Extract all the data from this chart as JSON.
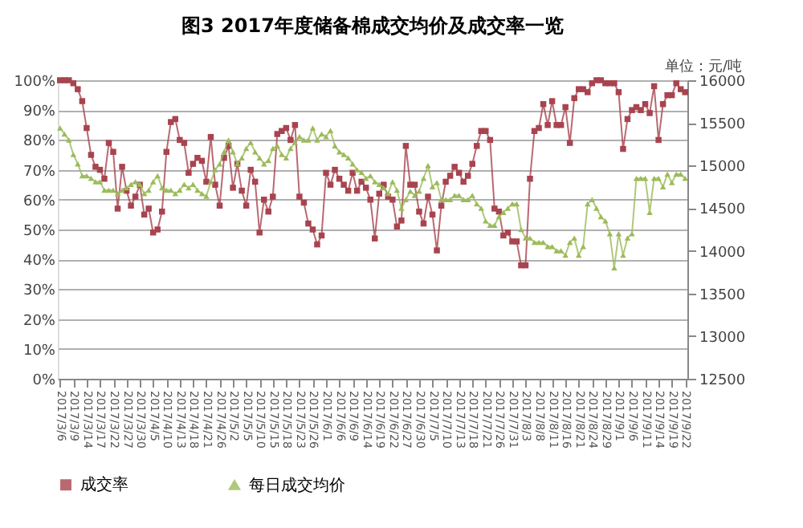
{
  "chart_data": {
    "type": "line",
    "title": "图3   2017年度储备棉成交均价及成交率一览",
    "annotations": [
      "单位：元/吨"
    ],
    "categories": [
      "2017/3/6",
      null,
      null,
      "2017/3/9",
      null,
      null,
      "2017/3/14",
      null,
      null,
      "2017/3/17",
      null,
      null,
      "2017/3/22",
      null,
      null,
      "2017/3/27",
      null,
      null,
      "2017/3/30",
      null,
      null,
      "2017/4/5",
      null,
      null,
      "2017/4/10",
      null,
      null,
      "2017/4/13",
      null,
      null,
      "2017/4/18",
      null,
      null,
      "2017/4/21",
      null,
      null,
      "2017/4/26",
      null,
      null,
      "2017/5/2",
      null,
      null,
      "2017/5/5",
      null,
      null,
      "2017/5/10",
      null,
      null,
      "2017/5/15",
      null,
      null,
      "2017/5/18",
      null,
      null,
      "2017/5/23",
      null,
      null,
      "2017/5/26",
      null,
      null,
      "2017/6/1",
      null,
      null,
      "2017/6/6",
      null,
      null,
      "2017/6/9",
      null,
      null,
      "2017/6/14",
      null,
      null,
      "2017/6/19",
      null,
      null,
      "2017/6/22",
      null,
      null,
      "2017/6/27",
      null,
      null,
      "2017/6/30",
      null,
      null,
      "2017/7/5",
      null,
      null,
      "2017/7/10",
      null,
      null,
      "2017/7/13",
      null,
      null,
      "2017/7/18",
      null,
      null,
      "2017/7/21",
      null,
      null,
      "2017/7/26",
      null,
      null,
      "2017/7/31",
      null,
      null,
      "2017/8/3",
      null,
      null,
      "2017/8/8",
      null,
      null,
      "2017/8/11",
      null,
      null,
      "2017/8/16",
      null,
      null,
      "2017/8/21",
      null,
      null,
      "2017/8/24",
      null,
      null,
      "2017/8/29",
      null,
      null,
      "2017/9/1",
      null,
      null,
      "2017/9/6",
      null,
      null,
      "2017/9/11",
      null,
      null,
      "2017/9/14",
      null,
      null,
      "2017/9/19",
      null,
      null,
      "2017/9/22"
    ],
    "series": [
      {
        "name": "成交率",
        "color": "#a8444f",
        "marker": "square",
        "values": [
          100,
          100,
          100,
          99,
          97,
          93,
          84,
          75,
          71,
          70,
          67,
          79,
          76,
          57,
          71,
          63,
          58,
          61,
          65,
          55,
          57,
          49,
          50,
          56,
          76,
          86,
          87,
          80,
          79,
          69,
          72,
          74,
          73,
          66,
          81,
          65,
          58,
          74,
          78,
          64,
          72,
          63,
          58,
          70,
          66,
          49,
          60,
          56,
          61,
          82,
          83,
          84,
          80,
          85,
          61,
          59,
          52,
          50,
          45,
          48,
          69,
          65,
          70,
          67,
          65,
          63,
          69,
          63,
          66,
          64,
          60,
          47,
          62,
          65,
          61,
          60,
          51,
          53,
          78,
          65,
          65,
          56,
          52,
          61,
          55,
          43,
          58,
          66,
          68,
          71,
          69,
          66,
          68,
          72,
          78,
          83,
          83,
          80,
          57,
          56,
          48,
          49,
          46,
          46,
          38,
          38,
          67,
          83,
          84,
          92,
          85,
          93,
          85,
          85,
          91,
          79,
          94,
          97,
          97,
          96,
          99,
          100,
          100,
          99,
          99,
          99,
          96,
          77,
          87,
          90,
          91,
          90,
          92,
          89,
          98,
          80,
          92,
          95,
          95,
          99,
          97,
          96
        ]
      },
      {
        "name": "每日成交均价",
        "color": "#9bbb59",
        "marker": "triangle",
        "axis": "y2",
        "values": [
          15440,
          15370,
          15300,
          15130,
          15020,
          14880,
          14880,
          14850,
          14810,
          14810,
          14710,
          14710,
          14710,
          14670,
          14710,
          14740,
          14780,
          14810,
          14780,
          14670,
          14710,
          14810,
          14880,
          14740,
          14710,
          14710,
          14670,
          14710,
          14780,
          14740,
          14780,
          14710,
          14670,
          14640,
          14810,
          14950,
          15020,
          15160,
          15300,
          15160,
          15020,
          15090,
          15200,
          15270,
          15160,
          15090,
          15020,
          15060,
          15200,
          15230,
          15130,
          15090,
          15200,
          15270,
          15340,
          15300,
          15300,
          15440,
          15300,
          15370,
          15340,
          15410,
          15230,
          15160,
          15130,
          15090,
          15020,
          14950,
          14920,
          14850,
          14880,
          14810,
          14780,
          14740,
          14670,
          14810,
          14710,
          14500,
          14600,
          14700,
          14650,
          14700,
          14850,
          15000,
          14750,
          14800,
          14600,
          14600,
          14600,
          14650,
          14650,
          14600,
          14600,
          14650,
          14550,
          14500,
          14350,
          14300,
          14300,
          14400,
          14450,
          14500,
          14550,
          14550,
          14250,
          14150,
          14150,
          14100,
          14100,
          14100,
          14050,
          14050,
          14000,
          14000,
          13950,
          14100,
          14150,
          13950,
          14050,
          14550,
          14600,
          14500,
          14400,
          14350,
          14200,
          13800,
          14200,
          13950,
          14150,
          14200,
          14850,
          14850,
          14850,
          14450,
          14850,
          14850,
          14750,
          14900,
          14800,
          14900,
          14900,
          14850
        ]
      }
    ],
    "ylim": [
      0,
      100
    ],
    "yticks": [
      {
        "value": 0,
        "label": "0%"
      },
      {
        "value": 10,
        "label": "10%"
      },
      {
        "value": 20,
        "label": "20%"
      },
      {
        "value": 30,
        "label": "30%"
      },
      {
        "value": 40,
        "label": "40%"
      },
      {
        "value": 50,
        "label": "50%"
      },
      {
        "value": 60,
        "label": "60%"
      },
      {
        "value": 70,
        "label": "70%"
      },
      {
        "value": 80,
        "label": "80%"
      },
      {
        "value": 90,
        "label": "90%"
      },
      {
        "value": 100,
        "label": "100%"
      }
    ],
    "y2lim": [
      12500,
      16000
    ],
    "y2ticks": [
      12500,
      13000,
      13500,
      14000,
      14500,
      15000,
      15500,
      16000
    ],
    "grid": "y",
    "legend": "bottom"
  }
}
